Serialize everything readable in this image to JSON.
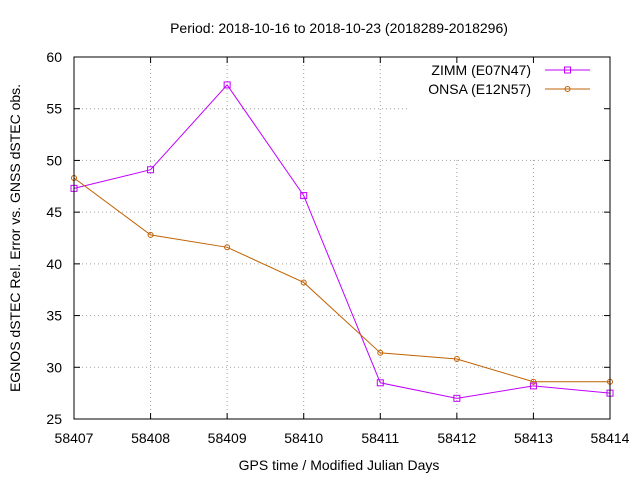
{
  "chart_data": {
    "type": "line",
    "title": "Period: 2018-10-16 to 2018-10-23 (2018289-2018296)",
    "xlabel": "GPS time / Modified Julian Days",
    "ylabel": "EGNOS dSTEC Rel. Error vs. GNSS dSTEC obs.",
    "xlim": [
      58407,
      58414
    ],
    "ylim": [
      25,
      60
    ],
    "xticks": [
      "58407",
      "58408",
      "58409",
      "58410",
      "58411",
      "58412",
      "58413",
      "58414"
    ],
    "yticks": [
      "25",
      "30",
      "35",
      "40",
      "45",
      "50",
      "55",
      "60"
    ],
    "grid": true,
    "legend_position": "top-right",
    "x": [
      58407,
      58408,
      58409,
      58410,
      58411,
      58412,
      58413,
      58414
    ],
    "series": [
      {
        "name": "ZIMM (E07N47)",
        "color": "#c000ff",
        "marker": "square",
        "values": [
          47.3,
          49.1,
          57.3,
          46.6,
          28.5,
          27.0,
          28.2,
          27.5
        ]
      },
      {
        "name": "ONSA (E12N57)",
        "color": "#c06000",
        "marker": "circle",
        "values": [
          48.3,
          42.8,
          41.6,
          38.2,
          31.4,
          30.8,
          28.6,
          28.6
        ]
      }
    ]
  }
}
